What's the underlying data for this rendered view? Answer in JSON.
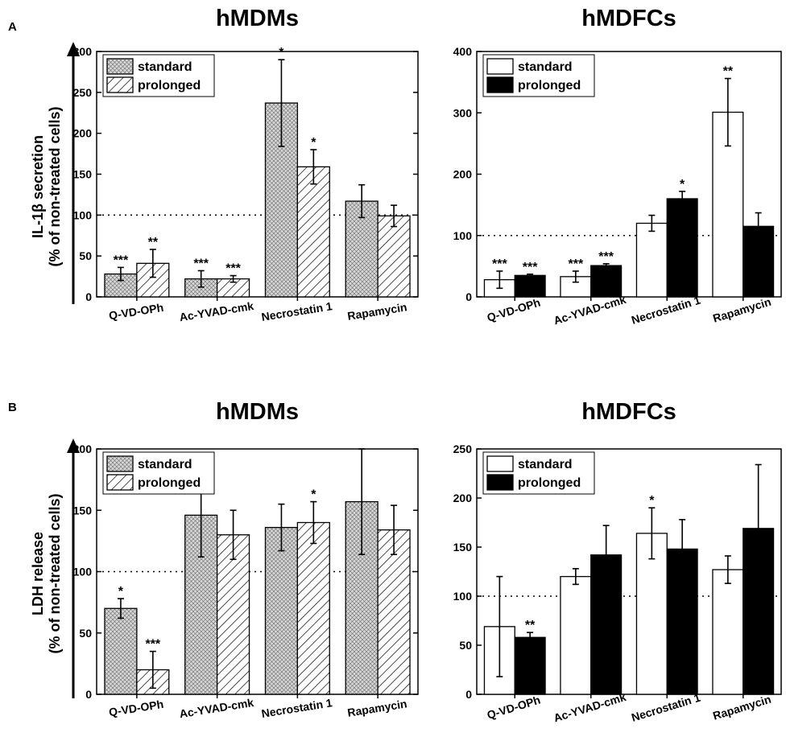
{
  "panel_labels": {
    "a": "A",
    "b": "B"
  },
  "y_labels": {
    "a_line1": "IL-1β secretion",
    "a_line2": "(% of non-treated cells)",
    "b_line1": "LDH release",
    "b_line2": "(% of non-treated cells)"
  },
  "colors": {
    "black": "#000000",
    "white": "#ffffff",
    "grey_fill": "#d6d6d6"
  },
  "chart_data": [
    {
      "id": "a-mdm",
      "type": "bar",
      "title": "hMDMs",
      "categories": [
        "Q-VD-OPh",
        "Ac-YVAD-cmk",
        "Necrostatin 1",
        "Rapamycin"
      ],
      "ylim": [
        0,
        300
      ],
      "yticks": [
        0,
        50,
        100,
        150,
        200,
        250,
        300
      ],
      "reference_line": 100,
      "legend": {
        "position": "top-left",
        "labels": [
          "standard",
          "prolonged"
        ]
      },
      "series": [
        {
          "name": "standard",
          "style": "crosshatch",
          "values": [
            28,
            22,
            237,
            117
          ],
          "errors": [
            8,
            10,
            53,
            20
          ],
          "annotations": [
            "***",
            "***",
            "*",
            ""
          ]
        },
        {
          "name": "prolonged",
          "style": "diagonal",
          "values": [
            41,
            22,
            159,
            99
          ],
          "errors": [
            17,
            4,
            21,
            13
          ],
          "annotations": [
            "**",
            "***",
            "*",
            ""
          ]
        }
      ]
    },
    {
      "id": "a-mdfc",
      "type": "bar",
      "title": "hMDFCs",
      "categories": [
        "Q-VD-OPh",
        "Ac-YVAD-cmk",
        "Necrostatin 1",
        "Rapamycin"
      ],
      "ylim": [
        0,
        400
      ],
      "yticks": [
        0,
        100,
        200,
        300,
        400
      ],
      "reference_line": 100,
      "legend": {
        "position": "top-left",
        "labels": [
          "standard",
          "prolonged"
        ]
      },
      "series": [
        {
          "name": "standard",
          "style": "white",
          "values": [
            28,
            33,
            120,
            301
          ],
          "errors": [
            14,
            9,
            13,
            55
          ],
          "annotations": [
            "***",
            "***",
            "",
            "**"
          ]
        },
        {
          "name": "prolonged",
          "style": "black",
          "values": [
            35,
            51,
            160,
            115
          ],
          "errors": [
            2,
            3,
            12,
            22
          ],
          "annotations": [
            "***",
            "***",
            "*",
            ""
          ]
        }
      ]
    },
    {
      "id": "b-mdm",
      "type": "bar",
      "title": "hMDMs",
      "categories": [
        "Q-VD-OPh",
        "Ac-YVAD-cmk",
        "Necrostatin 1",
        "Rapamycin"
      ],
      "ylim": [
        0,
        200
      ],
      "yticks": [
        0,
        50,
        100,
        150,
        200
      ],
      "reference_line": 100,
      "legend": {
        "position": "top-left",
        "labels": [
          "standard",
          "prolonged"
        ]
      },
      "series": [
        {
          "name": "standard",
          "style": "crosshatch",
          "values": [
            70,
            146,
            136,
            157
          ],
          "errors": [
            8,
            34,
            19,
            43
          ],
          "annotations": [
            "*",
            "",
            "",
            ""
          ]
        },
        {
          "name": "prolonged",
          "style": "diagonal",
          "values": [
            20,
            130,
            140,
            134
          ],
          "errors": [
            15,
            20,
            17,
            20
          ],
          "annotations": [
            "***",
            "",
            "*",
            ""
          ]
        }
      ]
    },
    {
      "id": "b-mdfc",
      "type": "bar",
      "title": "hMDFCs",
      "categories": [
        "Q-VD-OPh",
        "Ac-YVAD-cmk",
        "Necrostatin 1",
        "Rapamycin"
      ],
      "ylim": [
        0,
        250
      ],
      "yticks": [
        0,
        50,
        100,
        150,
        200,
        250
      ],
      "reference_line": 100,
      "legend": {
        "position": "top-left",
        "labels": [
          "standard",
          "prolonged"
        ]
      },
      "series": [
        {
          "name": "standard",
          "style": "white",
          "values": [
            69,
            120,
            164,
            127
          ],
          "errors": [
            51,
            8,
            26,
            14
          ],
          "annotations": [
            "",
            "",
            "*",
            ""
          ]
        },
        {
          "name": "prolonged",
          "style": "black",
          "values": [
            58,
            142,
            148,
            169
          ],
          "errors": [
            5,
            30,
            30,
            65
          ],
          "annotations": [
            "**",
            "",
            "",
            ""
          ]
        }
      ]
    }
  ]
}
